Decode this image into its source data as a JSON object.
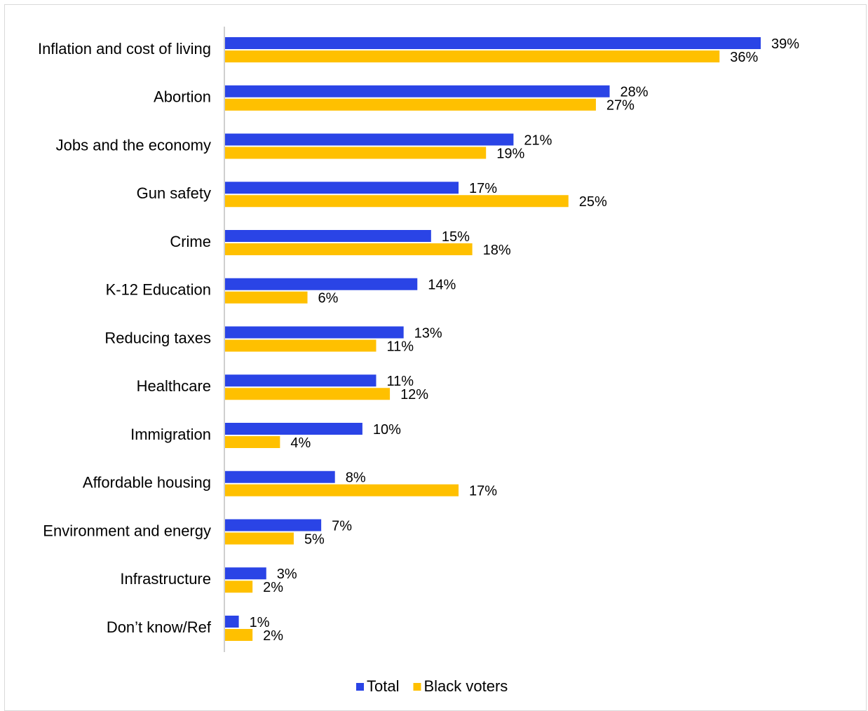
{
  "chart_data": {
    "type": "bar",
    "orientation": "horizontal",
    "categories": [
      "Inflation and cost of living",
      "Abortion",
      "Jobs and the economy",
      "Gun safety",
      "Crime",
      "K-12 Education",
      "Reducing taxes",
      "Healthcare",
      "Immigration",
      "Affordable housing",
      "Environment and energy",
      "Infrastructure",
      "Don’t know/Ref"
    ],
    "series": [
      {
        "name": "Total",
        "color": "#2a44e6",
        "values": [
          39,
          28,
          21,
          17,
          15,
          14,
          13,
          11,
          10,
          8,
          7,
          3,
          1
        ],
        "labels": [
          "39%",
          "28%",
          "21%",
          "17%",
          "15%",
          "14%",
          "13%",
          "11%",
          "10%",
          "8%",
          "7%",
          "3%",
          "1%"
        ]
      },
      {
        "name": "Black voters",
        "color": "#ffc000",
        "values": [
          36,
          27,
          19,
          25,
          18,
          6,
          11,
          12,
          4,
          17,
          5,
          2,
          2
        ],
        "labels": [
          "36%",
          "27%",
          "19%",
          "25%",
          "18%",
          "6%",
          "11%",
          "12%",
          "4%",
          "17%",
          "5%",
          "2%",
          "2%"
        ]
      }
    ],
    "xlim": [
      0,
      39
    ],
    "grid": false,
    "legend_position": "bottom",
    "title": "",
    "xlabel": "",
    "ylabel": ""
  }
}
